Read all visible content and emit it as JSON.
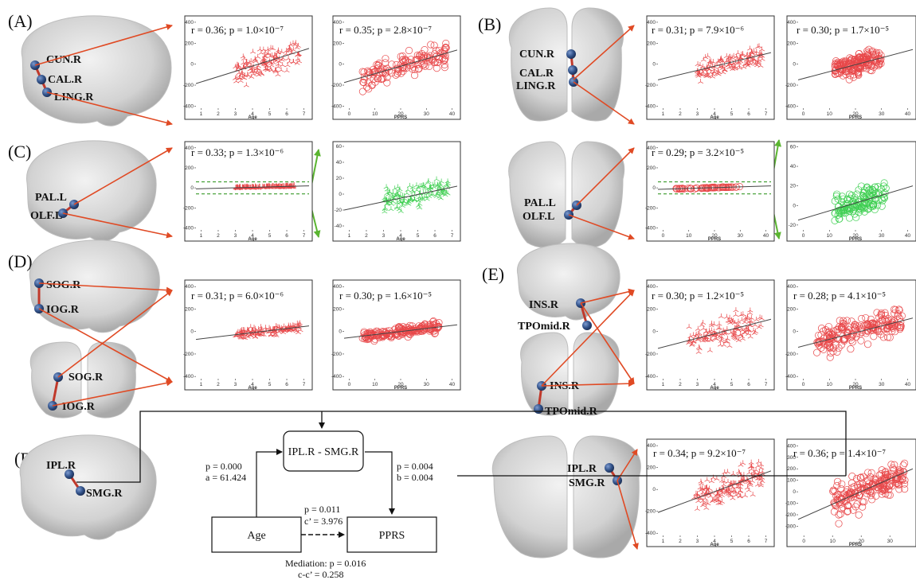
{
  "panels": {
    "A": "(A)",
    "B": "(B)",
    "C": "(C)",
    "D": "(D)",
    "E": "(E)",
    "F": "(F)"
  },
  "colors": {
    "red_points": "#e8484a",
    "green_points": "#3fcf52",
    "fit_line": "#444444",
    "arrow_red": "#e04a24",
    "arrow_green": "#5bb531",
    "dashed_green": "#3a9a2a",
    "node_blue": "#2f4f86"
  },
  "region_labels": {
    "A": [
      "CUN.R",
      "CAL.R",
      "LING.R"
    ],
    "B": [
      "CUN.R",
      "CAL.R",
      "LING.R"
    ],
    "C": [
      "PAL.L",
      "OLF.L"
    ],
    "C2": [
      "PAL.L",
      "OLF.L"
    ],
    "D": [
      "SOG.R",
      "IOG.R"
    ],
    "D2": [
      "SOG.R",
      "IOG.R"
    ],
    "E": [
      "INS.R",
      "TPOmid.R"
    ],
    "E2": [
      "INS.R",
      "TPOmid.R"
    ],
    "F": [
      "IPL.R",
      "SMG.R"
    ],
    "F2": [
      "IPL.R",
      "SMG.R"
    ]
  },
  "mediation": {
    "top_box": "IPL.R - SMG.R",
    "left_box": "Age",
    "right_box": "PPRS",
    "a_p": "p = 0.000",
    "a_val": "a = 61.424",
    "b_p": "p = 0.004",
    "b_val": "b = 0.004",
    "c_p": "p = 0.011",
    "c_val": "c’ = 3.976",
    "med_p": "Mediation: p = 0.016",
    "med_val": "c-c’ = 0.258"
  },
  "chart_data": [
    {
      "id": "A-age",
      "type": "scatter",
      "stat": "r = 0.36; p = 1.0×10⁻⁷",
      "xlabel": "Age",
      "ylabel": "",
      "xlim": [
        0.7,
        7.3
      ],
      "ylim": [
        -420,
        430
      ],
      "xticks": [
        1,
        2,
        3,
        4,
        5,
        6,
        7
      ],
      "yticks": [
        -400,
        -200,
        0,
        200,
        400
      ],
      "fit": [
        [
          0.7,
          -185
        ],
        [
          7.3,
          150
        ]
      ],
      "marker": "tri",
      "color": "red",
      "n": 150,
      "cluster": {
        "x": [
          3.0,
          6.8
        ],
        "y": [
          -250,
          300
        ]
      }
    },
    {
      "id": "A-pprs",
      "type": "scatter",
      "stat": "r = 0.35; p = 2.8×10⁻⁷",
      "xlabel": "PPRS",
      "ylabel": "",
      "xlim": [
        -2,
        42
      ],
      "ylim": [
        -420,
        430
      ],
      "xticks": [
        0,
        10,
        20,
        30,
        40
      ],
      "yticks": [
        -400,
        -200,
        0,
        200,
        400
      ],
      "fit": [
        [
          -2,
          -175
        ],
        [
          42,
          135
        ]
      ],
      "marker": "circle",
      "color": "red",
      "n": 140,
      "cluster": {
        "x": [
          5,
          38
        ],
        "y": [
          -200,
          300
        ]
      }
    },
    {
      "id": "B-age",
      "type": "scatter",
      "stat": "r = 0.31; p = 7.9×10⁻⁶",
      "xlabel": "Age",
      "ylabel": "",
      "xlim": [
        0.7,
        7.3
      ],
      "ylim": [
        -420,
        430
      ],
      "xticks": [
        1,
        2,
        3,
        4,
        5,
        6,
        7
      ],
      "yticks": [
        -400,
        -200,
        0,
        200,
        400
      ],
      "fit": [
        [
          0.7,
          -150
        ],
        [
          7.3,
          110
        ]
      ],
      "marker": "tri",
      "color": "red",
      "n": 150,
      "cluster": {
        "x": [
          3.0,
          6.8
        ],
        "y": [
          -180,
          250
        ]
      }
    },
    {
      "id": "B-pprs",
      "type": "scatter",
      "stat": "r = 0.30; p = 1.7×10⁻⁵",
      "xlabel": "PPRS",
      "ylabel": "",
      "xlim": [
        -2,
        42
      ],
      "ylim": [
        -420,
        430
      ],
      "xticks": [
        0,
        10,
        20,
        30,
        40
      ],
      "yticks": [
        -400,
        -200,
        0,
        200,
        400
      ],
      "fit": [
        [
          -2,
          -150
        ],
        [
          42,
          140
        ]
      ],
      "marker": "circle",
      "color": "red",
      "n": 180,
      "cluster": {
        "x": [
          12,
          30
        ],
        "y": [
          -200,
          250
        ]
      }
    },
    {
      "id": "C-age",
      "type": "scatter",
      "stat": "r = 0.33; p = 1.3×10⁻⁶",
      "xlabel": "Age",
      "ylabel": "",
      "xlim": [
        0.7,
        7.3
      ],
      "ylim": [
        -420,
        430
      ],
      "xticks": [
        1,
        2,
        3,
        4,
        5,
        6,
        7
      ],
      "yticks": [
        -400,
        -200,
        0,
        200,
        400
      ],
      "fit": [
        [
          0.7,
          -10
        ],
        [
          7.3,
          20
        ]
      ],
      "marker": "tri",
      "color": "red",
      "n": 150,
      "cluster": {
        "x": [
          3.0,
          6.5
        ],
        "y": [
          -20,
          20
        ]
      },
      "dashed": [
        60,
        -60
      ]
    },
    {
      "id": "C-zoom",
      "type": "scatter",
      "stat": "",
      "xlabel": "Age",
      "ylabel": "",
      "xlim": [
        0.7,
        7.3
      ],
      "ylim": [
        -45,
        62
      ],
      "xticks": [
        1,
        2,
        3,
        4,
        5,
        6,
        7
      ],
      "yticks": [
        -40,
        -20,
        0,
        20,
        40,
        60
      ],
      "fit": [
        [
          0.7,
          -20
        ],
        [
          7.3,
          10
        ]
      ],
      "marker": "tri",
      "color": "green",
      "n": 150,
      "cluster": {
        "x": [
          3.0,
          6.8
        ],
        "y": [
          -20,
          40
        ]
      }
    },
    {
      "id": "C2-pprs",
      "type": "scatter",
      "stat": "r = 0.29; p = 3.2×10⁻⁵",
      "xlabel": "PPRS",
      "ylabel": "",
      "xlim": [
        -2,
        42
      ],
      "ylim": [
        -420,
        430
      ],
      "xticks": [
        0,
        10,
        20,
        30,
        40
      ],
      "yticks": [
        -400,
        -200,
        0,
        200,
        400
      ],
      "fit": [
        [
          -2,
          -15
        ],
        [
          42,
          20
        ]
      ],
      "marker": "circle",
      "color": "red",
      "n": 60,
      "cluster": {
        "x": [
          5,
          30
        ],
        "y": [
          -10,
          10
        ]
      },
      "dashed": [
        60,
        -60
      ]
    },
    {
      "id": "C2-zoom",
      "type": "scatter",
      "stat": "",
      "xlabel": "PPRS",
      "ylabel": "",
      "xlim": [
        -2,
        42
      ],
      "ylim": [
        -25,
        62
      ],
      "xticks": [
        0,
        10,
        20,
        30,
        40
      ],
      "yticks": [
        -20,
        0,
        20,
        40,
        60
      ],
      "fit": [
        [
          -2,
          -15
        ],
        [
          42,
          20
        ]
      ],
      "marker": "circle",
      "color": "green",
      "n": 140,
      "cluster": {
        "x": [
          12,
          32
        ],
        "y": [
          -15,
          45
        ]
      }
    },
    {
      "id": "D-age",
      "type": "scatter",
      "stat": "r = 0.31; p = 6.0×10⁻⁶",
      "xlabel": "Age",
      "ylabel": "",
      "xlim": [
        0.7,
        7.3
      ],
      "ylim": [
        -420,
        430
      ],
      "xticks": [
        1,
        2,
        3,
        4,
        5,
        6,
        7
      ],
      "yticks": [
        -400,
        -200,
        0,
        200,
        400
      ],
      "fit": [
        [
          0.7,
          -70
        ],
        [
          7.3,
          50
        ]
      ],
      "marker": "tri",
      "color": "red",
      "n": 150,
      "cluster": {
        "x": [
          3.0,
          6.8
        ],
        "y": [
          -60,
          120
        ]
      }
    },
    {
      "id": "D-pprs",
      "type": "scatter",
      "stat": "r = 0.30; p = 1.6×10⁻⁵",
      "xlabel": "PPRS",
      "ylabel": "",
      "xlim": [
        -2,
        42
      ],
      "ylim": [
        -420,
        430
      ],
      "xticks": [
        0,
        10,
        20,
        30,
        40
      ],
      "yticks": [
        -400,
        -200,
        0,
        200,
        400
      ],
      "fit": [
        [
          -2,
          -60
        ],
        [
          42,
          60
        ]
      ],
      "marker": "circle",
      "color": "red",
      "n": 180,
      "cluster": {
        "x": [
          5,
          35
        ],
        "y": [
          -60,
          150
        ]
      }
    },
    {
      "id": "E-age",
      "type": "scatter",
      "stat": "r = 0.30; p = 1.2×10⁻⁵",
      "xlabel": "Age",
      "ylabel": "",
      "xlim": [
        0.7,
        7.3
      ],
      "ylim": [
        -420,
        430
      ],
      "xticks": [
        1,
        2,
        3,
        4,
        5,
        6,
        7
      ],
      "yticks": [
        -400,
        -200,
        0,
        200,
        400
      ],
      "fit": [
        [
          0.7,
          -150
        ],
        [
          7.3,
          110
        ]
      ],
      "marker": "tri",
      "color": "red",
      "n": 150,
      "cluster": {
        "x": [
          2.5,
          6.8
        ],
        "y": [
          -250,
          300
        ]
      }
    },
    {
      "id": "E-pprs",
      "type": "scatter",
      "stat": "r = 0.28; p = 4.1×10⁻⁵",
      "xlabel": "PPRS",
      "ylabel": "",
      "xlim": [
        -2,
        42
      ],
      "ylim": [
        -420,
        430
      ],
      "xticks": [
        0,
        10,
        20,
        30,
        40
      ],
      "yticks": [
        -400,
        -200,
        0,
        200,
        400
      ],
      "fit": [
        [
          -2,
          -140
        ],
        [
          42,
          120
        ]
      ],
      "marker": "circle",
      "color": "red",
      "n": 200,
      "cluster": {
        "x": [
          5,
          38
        ],
        "y": [
          -250,
          300
        ]
      }
    },
    {
      "id": "F-age",
      "type": "scatter",
      "stat": "r = 0.34; p = 9.2×10⁻⁷",
      "xlabel": "Age",
      "ylabel": "",
      "xlim": [
        0.7,
        7.3
      ],
      "ylim": [
        -420,
        430
      ],
      "xticks": [
        1,
        2,
        3,
        4,
        5,
        6,
        7
      ],
      "yticks": [
        -400,
        -200,
        0,
        200,
        400
      ],
      "fit": [
        [
          0.7,
          -210
        ],
        [
          7.3,
          170
        ]
      ],
      "marker": "tri",
      "color": "red",
      "n": 170,
      "cluster": {
        "x": [
          2.8,
          6.8
        ],
        "y": [
          -300,
          330
        ]
      }
    },
    {
      "id": "F-pprs",
      "type": "scatter",
      "stat": "r = 0.36; p = 1.4×10⁻⁷",
      "xlabel": "PPRS",
      "ylabel": "",
      "xlim": [
        -2,
        38
      ],
      "ylim": [
        -380,
        430
      ],
      "xticks": [
        0,
        10,
        20,
        30
      ],
      "yticks": [
        -300,
        -200,
        -100,
        0,
        100,
        200,
        300,
        400
      ],
      "fit": [
        [
          -2,
          -240
        ],
        [
          38,
          200
        ]
      ],
      "marker": "circle",
      "color": "red",
      "n": 200,
      "cluster": {
        "x": [
          10,
          36
        ],
        "y": [
          -300,
          350
        ]
      }
    }
  ]
}
